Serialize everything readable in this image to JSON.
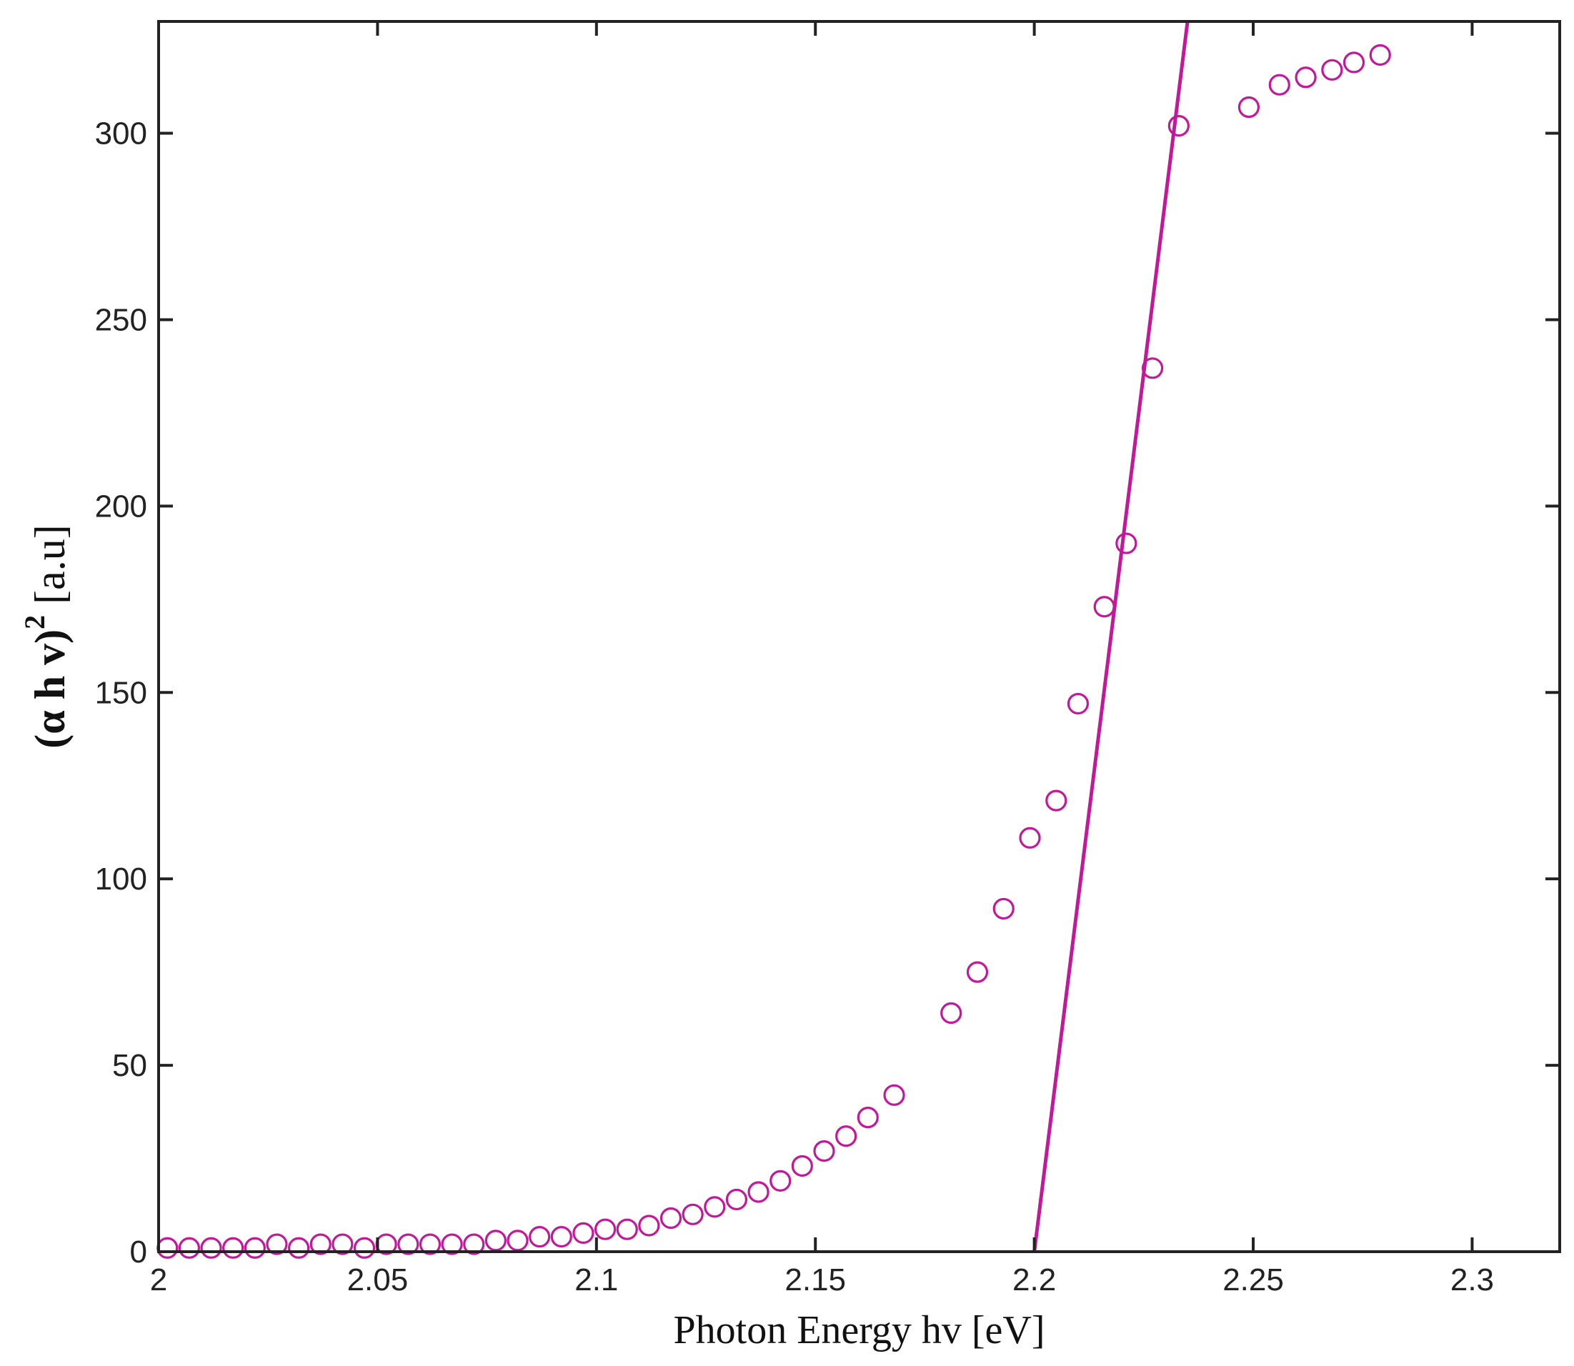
{
  "chart_data": {
    "type": "scatter",
    "xlabel": "Photon Energy hv [eV]",
    "ylabel": {
      "main": "(α h v)",
      "superscript": "2",
      "unit": " [a.u]"
    },
    "xlim": [
      2.0,
      2.32
    ],
    "ylim": [
      0,
      330
    ],
    "x_ticks": [
      2.0,
      2.05,
      2.1,
      2.15,
      2.2,
      2.25,
      2.3
    ],
    "x_tick_labels": [
      "2",
      "2.05",
      "2.1",
      "2.15",
      "2.2",
      "2.25",
      "2.3"
    ],
    "y_ticks": [
      0,
      50,
      100,
      150,
      200,
      250,
      300
    ],
    "y_tick_labels": [
      "0",
      "50",
      "100",
      "150",
      "200",
      "250",
      "300"
    ],
    "grid": false,
    "color": "#c2189a",
    "series": [
      {
        "kind": "scatter",
        "marker": "open-circle",
        "x": [
          2.002,
          2.007,
          2.012,
          2.017,
          2.022,
          2.027,
          2.032,
          2.037,
          2.042,
          2.047,
          2.052,
          2.057,
          2.062,
          2.067,
          2.072,
          2.077,
          2.082,
          2.087,
          2.092,
          2.097,
          2.102,
          2.107,
          2.112,
          2.117,
          2.122,
          2.127,
          2.132,
          2.137,
          2.142,
          2.147,
          2.152,
          2.157,
          2.162,
          2.168,
          2.181,
          2.187,
          2.193,
          2.199,
          2.205,
          2.21,
          2.216,
          2.221,
          2.227,
          2.233,
          2.249,
          2.256,
          2.262,
          2.268,
          2.273,
          2.279
        ],
        "y": [
          1,
          1,
          1,
          1,
          1,
          2,
          1,
          2,
          2,
          1,
          2,
          2,
          2,
          2,
          2,
          3,
          3,
          4,
          4,
          5,
          6,
          6,
          7,
          9,
          10,
          12,
          14,
          16,
          19,
          23,
          27,
          31,
          36,
          42,
          64,
          75,
          92,
          111,
          121,
          147,
          173,
          190,
          237,
          302,
          307,
          313,
          315,
          317,
          319,
          321
        ]
      },
      {
        "kind": "line",
        "x": [
          2.2,
          2.235
        ],
        "y": [
          0,
          330
        ]
      }
    ]
  }
}
